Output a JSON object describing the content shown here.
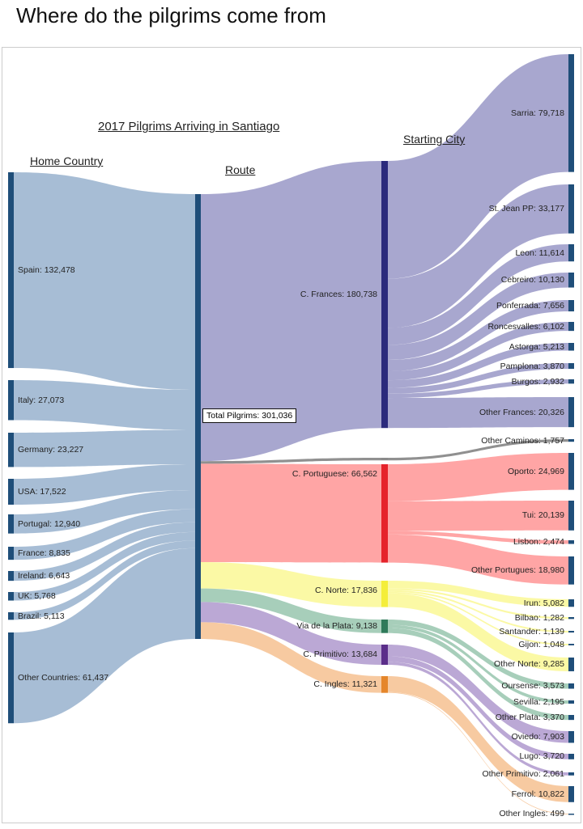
{
  "page_title": "Where do the pilgrims come from",
  "chart_title": "2017 Pilgrims Arriving in Santiago",
  "headers": {
    "home": "Home Country",
    "route": "Route",
    "city": "Starting City"
  },
  "total_label": "Total Pilgrims: 301,036",
  "chart_data": {
    "type": "sankey",
    "total": 301036,
    "countries": [
      {
        "name": "Spain",
        "value": 132478
      },
      {
        "name": "Italy",
        "value": 27073
      },
      {
        "name": "Germany",
        "value": 23227
      },
      {
        "name": "USA",
        "value": 17522
      },
      {
        "name": "Portugal",
        "value": 12940
      },
      {
        "name": "France",
        "value": 8835
      },
      {
        "name": "Ireland",
        "value": 6643
      },
      {
        "name": "UK",
        "value": 5768
      },
      {
        "name": "Brazil",
        "value": 5113
      },
      {
        "name": "Other Countries",
        "value": 61437
      }
    ],
    "routes": [
      {
        "name": "C. Frances",
        "value": 180738,
        "flow": "#a3a2cc",
        "bar": "#2b2a7c"
      },
      {
        "name": "",
        "value": 1757,
        "flow": "#8a8a8a",
        "bar": "#8a8a8a"
      },
      {
        "name": "C. Portuguese",
        "value": 66562,
        "flow": "#ffa0a0",
        "bar": "#e5232b"
      },
      {
        "name": "C. Norte",
        "value": 17836,
        "flow": "#fbf9a0",
        "bar": "#f4ee3a"
      },
      {
        "name": "Via de la Plata",
        "value": 9138,
        "flow": "#a2cbb6",
        "bar": "#2f7a5a"
      },
      {
        "name": "C. Primitivo",
        "value": 13684,
        "flow": "#b7a3d3",
        "bar": "#5b2e8a"
      },
      {
        "name": "C. Ingles",
        "value": 11321,
        "flow": "#f7c79c",
        "bar": "#e5862b"
      }
    ],
    "cities": [
      {
        "name": "Sarria",
        "value": 79718,
        "route": 0
      },
      {
        "name": "St. Jean PP",
        "value": 33177,
        "route": 0
      },
      {
        "name": "Leon",
        "value": 11614,
        "route": 0
      },
      {
        "name": "Cebreiro",
        "value": 10130,
        "route": 0
      },
      {
        "name": "Ponferrada",
        "value": 7656,
        "route": 0
      },
      {
        "name": "Roncesvalles",
        "value": 6102,
        "route": 0
      },
      {
        "name": "Astorga",
        "value": 5213,
        "route": 0
      },
      {
        "name": "Pamplona",
        "value": 3870,
        "route": 0
      },
      {
        "name": "Burgos",
        "value": 2932,
        "route": 0
      },
      {
        "name": "Other Frances",
        "value": 20326,
        "route": 0
      },
      {
        "name": "Other Caminos",
        "value": 1757,
        "route": 1
      },
      {
        "name": "Oporto",
        "value": 24969,
        "route": 2
      },
      {
        "name": "Tui",
        "value": 20139,
        "route": 2
      },
      {
        "name": "Lisbon",
        "value": 2474,
        "route": 2
      },
      {
        "name": "Other Portugues",
        "value": 18980,
        "route": 2
      },
      {
        "name": "Irun",
        "value": 5082,
        "route": 3
      },
      {
        "name": "Bilbao",
        "value": 1282,
        "route": 3
      },
      {
        "name": "Santander",
        "value": 1139,
        "route": 3
      },
      {
        "name": "Gijon",
        "value": 1048,
        "route": 3
      },
      {
        "name": "Other Norte",
        "value": 9285,
        "route": 3
      },
      {
        "name": "Oursense",
        "value": 3573,
        "route": 4
      },
      {
        "name": "Sevilla",
        "value": 2195,
        "route": 4
      },
      {
        "name": "Other Plata",
        "value": 3370,
        "route": 4
      },
      {
        "name": "Oviedo",
        "value": 7903,
        "route": 5
      },
      {
        "name": "Lugo",
        "value": 3720,
        "route": 5
      },
      {
        "name": "Other Primitivo",
        "value": 2061,
        "route": 5
      },
      {
        "name": "Ferrol",
        "value": 10822,
        "route": 6
      },
      {
        "name": "Other Ingles",
        "value": 499,
        "route": 6
      }
    ],
    "colors": {
      "country_flow": "#a2b9d3",
      "node_bar": "#1f4e79"
    }
  }
}
